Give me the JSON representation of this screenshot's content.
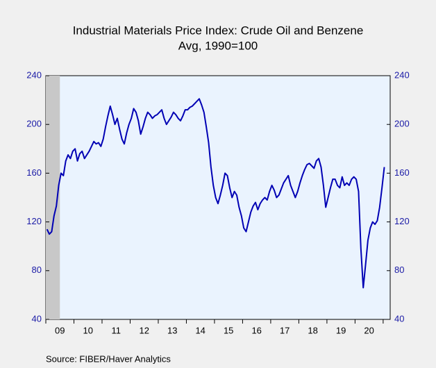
{
  "chart_data": {
    "type": "line",
    "title": "Industrial Materials Price Index: Crude Oil and Benzene",
    "subtitle": "Avg, 1990=100",
    "source": "Source:   FIBER/Haver Analytics",
    "categories": [
      null,
      null,
      null,
      null,
      null,
      null,
      "09",
      null,
      null,
      null,
      null,
      null,
      null,
      null,
      null,
      null,
      null,
      null,
      "10",
      null,
      null,
      null,
      null,
      null,
      null,
      null,
      null,
      null,
      null,
      null,
      "11",
      null,
      null,
      null,
      null,
      null,
      null,
      null,
      null,
      null,
      null,
      null,
      "12",
      null,
      null,
      null,
      null,
      null,
      null,
      null,
      null,
      null,
      null,
      null,
      "13",
      null,
      null,
      null,
      null,
      null,
      null,
      null,
      null,
      null,
      null,
      null,
      "14",
      null,
      null,
      null,
      null,
      null,
      null,
      null,
      null,
      null,
      null,
      null,
      "15",
      null,
      null,
      null,
      null,
      null,
      null,
      null,
      null,
      null,
      null,
      null,
      "16",
      null,
      null,
      null,
      null,
      null,
      null,
      null,
      null,
      null,
      null,
      null,
      "17",
      null,
      null,
      null,
      null,
      null,
      null,
      null,
      null,
      null,
      null,
      null,
      "18",
      null,
      null,
      null,
      null,
      null,
      null,
      null,
      null,
      null,
      null,
      null,
      "19",
      null,
      null,
      null,
      null,
      null,
      null,
      null,
      null,
      null,
      null,
      null,
      "20",
      null,
      null,
      null,
      null,
      null,
      null
    ],
    "series": [
      {
        "color": "#0000b4",
        "values": [
          114,
          110,
          112,
          125,
          133,
          150,
          160,
          158,
          170,
          175,
          172,
          178,
          180,
          170,
          176,
          178,
          172,
          175,
          178,
          182,
          186,
          184,
          185,
          182,
          188,
          198,
          207,
          215,
          208,
          200,
          205,
          196,
          188,
          184,
          193,
          200,
          205,
          213,
          210,
          203,
          192,
          198,
          205,
          210,
          208,
          205,
          207,
          208,
          210,
          212,
          205,
          200,
          203,
          206,
          210,
          208,
          205,
          203,
          207,
          212,
          212,
          214,
          215,
          217,
          219,
          221,
          216,
          210,
          198,
          185,
          165,
          150,
          140,
          135,
          142,
          150,
          160,
          158,
          148,
          140,
          145,
          142,
          132,
          125,
          115,
          112,
          120,
          128,
          133,
          136,
          130,
          135,
          138,
          140,
          138,
          145,
          150,
          146,
          140,
          142,
          147,
          152,
          155,
          158,
          150,
          145,
          140,
          145,
          152,
          158,
          163,
          167,
          168,
          166,
          164,
          170,
          172,
          165,
          150,
          132,
          140,
          148,
          155,
          155,
          150,
          148,
          157,
          150,
          152,
          150,
          155,
          157,
          155,
          145,
          98,
          66,
          85,
          105,
          115,
          120,
          118,
          121,
          132,
          148,
          165
        ]
      }
    ],
    "ylim": [
      40,
      240
    ],
    "yticks": [
      40,
      80,
      120,
      160,
      200,
      240
    ],
    "y2lim": [
      40,
      240
    ],
    "y2ticks": [
      40,
      80,
      120,
      160,
      200,
      240
    ]
  }
}
